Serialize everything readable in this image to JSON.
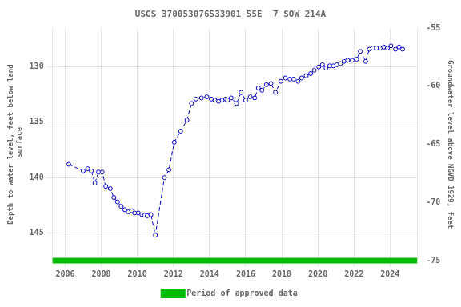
{
  "chart_data": {
    "type": "line",
    "title": "USGS 370053076533901 55E  7 SOW 214A",
    "ylabel": "Depth to water level, feet below land\n surface",
    "y2label": "Groundwater level above NGVD 1929, feet",
    "x": [
      2006.2,
      2007.0,
      2007.25,
      2007.45,
      2007.65,
      2007.85,
      2008.05,
      2008.25,
      2008.5,
      2008.7,
      2008.9,
      2009.1,
      2009.3,
      2009.5,
      2009.7,
      2009.85,
      2010.05,
      2010.25,
      2010.4,
      2010.55,
      2010.75,
      2011.0,
      2011.5,
      2011.75,
      2012.05,
      2012.4,
      2012.75,
      2013.0,
      2013.25,
      2013.55,
      2013.85,
      2014.1,
      2014.3,
      2014.5,
      2014.7,
      2014.9,
      2015.0,
      2015.2,
      2015.5,
      2015.75,
      2016.0,
      2016.25,
      2016.5,
      2016.7,
      2016.9,
      2017.15,
      2017.4,
      2017.65,
      2017.95,
      2018.2,
      2018.45,
      2018.65,
      2018.9,
      2019.1,
      2019.35,
      2019.6,
      2019.8,
      2020.05,
      2020.25,
      2020.45,
      2020.65,
      2020.85,
      2021.05,
      2021.25,
      2021.45,
      2021.65,
      2021.9,
      2022.15,
      2022.35,
      2022.65,
      2022.85,
      2023.05,
      2023.25,
      2023.45,
      2023.65,
      2023.85,
      2024.05,
      2024.3,
      2024.5,
      2024.7
    ],
    "series": [
      {
        "color": "#0000cc",
        "line_style": "dashed",
        "marker": "circle",
        "values": [
          138.8,
          139.4,
          139.2,
          139.4,
          140.5,
          139.5,
          139.5,
          140.8,
          141.0,
          141.8,
          142.2,
          142.6,
          142.9,
          143.1,
          143.0,
          143.2,
          143.2,
          143.35,
          143.4,
          143.45,
          143.35,
          145.2,
          140.0,
          139.3,
          136.8,
          135.8,
          134.8,
          133.3,
          132.9,
          132.8,
          132.7,
          132.9,
          133.0,
          133.1,
          133.0,
          132.9,
          133.0,
          132.8,
          133.3,
          132.3,
          133.0,
          132.7,
          132.8,
          131.9,
          132.1,
          131.6,
          131.5,
          132.3,
          131.3,
          131.0,
          131.1,
          131.1,
          131.3,
          131.0,
          130.8,
          130.6,
          130.3,
          130.0,
          129.8,
          130.1,
          129.9,
          129.9,
          129.8,
          129.7,
          129.5,
          129.4,
          129.4,
          129.3,
          128.6,
          129.5,
          128.4,
          128.3,
          128.3,
          128.3,
          128.2,
          128.3,
          128.1,
          128.4,
          128.2,
          128.4
        ]
      },
      {
        "name": "Period of approved data",
        "color": "#00bb00",
        "type": "band"
      }
    ],
    "xlim": [
      2005.3,
      2025.5
    ],
    "xticks": [
      2006,
      2008,
      2010,
      2012,
      2014,
      2016,
      2018,
      2020,
      2022,
      2024
    ],
    "ylim": [
      147.5,
      126.5
    ],
    "yticks": [
      130,
      135,
      140,
      145
    ],
    "y2lim": [
      -75,
      -55
    ],
    "y2ticks": [
      -55,
      -60,
      -65,
      -70,
      -75
    ],
    "grid": true,
    "legend": "bottom"
  }
}
